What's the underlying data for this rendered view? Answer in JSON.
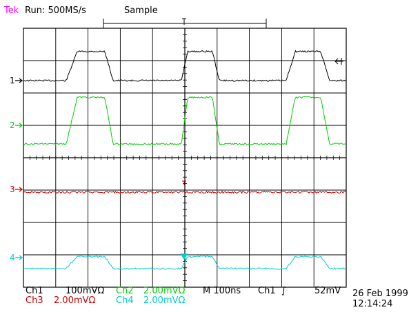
{
  "header": {
    "brand": "Tek",
    "run_status": "Run: 500MS/s",
    "acq_mode": "Sample"
  },
  "channels": [
    {
      "marker": "1",
      "color": "#000000",
      "ref_level_div": 1.25,
      "wave": "pulse",
      "low_div": 1.0,
      "high_div": 2.0
    },
    {
      "marker": "2",
      "color": "#00cc00",
      "ref_level_div": 1.0,
      "wave": "pulse",
      "low_div": 0.0,
      "high_div": 2.0
    },
    {
      "marker": "3",
      "color": "#cc0000",
      "ref_level_div": 0.0,
      "wave": "flat",
      "low_div": 0.0,
      "high_div": 0.0
    },
    {
      "marker": "4",
      "color": "#00cccc",
      "ref_level_div": 0.0,
      "wave": "pulse",
      "low_div": -0.2,
      "high_div": 0.8
    }
  ],
  "readout": {
    "ch1_label": "Ch1",
    "ch1_scale": "100mVΩ",
    "ch2_label": "Ch2",
    "ch2_scale": "2.00mVΩ",
    "timebase": "M 100ns",
    "trig_src": "Ch1",
    "trig_slope": "∫",
    "trig_level": "52mV",
    "ch3_label": "Ch3",
    "ch3_scale": "2.00mVΩ",
    "ch4_label": "Ch4",
    "ch4_scale": "2.00mVΩ"
  },
  "timestamp": {
    "date": "26 Feb 1999",
    "time": "12:14:24"
  },
  "colors": {
    "ch1": "#000000",
    "ch2": "#00cc00",
    "ch3": "#cc0000",
    "ch4": "#00cccc",
    "brand": "#ff00ff"
  }
}
